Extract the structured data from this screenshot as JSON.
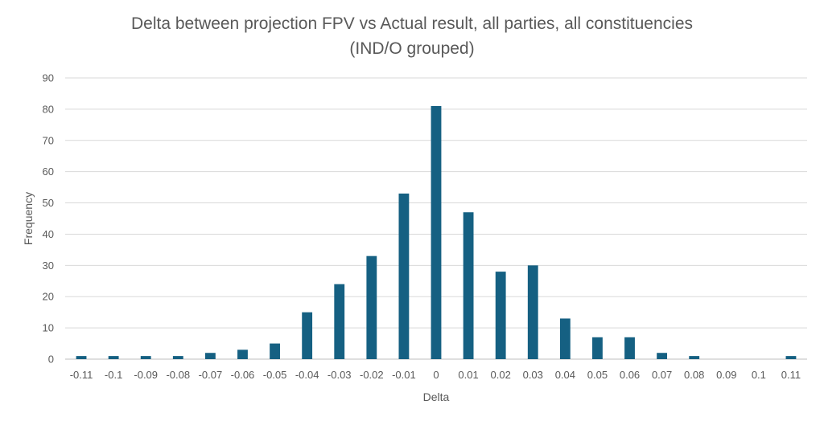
{
  "chart_data": {
    "type": "bar",
    "title_lines": [
      "Delta between projection FPV vs Actual result, all parties, all constituencies",
      "(IND/O grouped)"
    ],
    "xlabel": "Delta",
    "ylabel": "Frequency",
    "categories": [
      "-0.11",
      "-0.1",
      "-0.09",
      "-0.08",
      "-0.07",
      "-0.06",
      "-0.05",
      "-0.04",
      "-0.03",
      "-0.02",
      "-0.01",
      "0",
      "0.01",
      "0.02",
      "0.03",
      "0.04",
      "0.05",
      "0.06",
      "0.07",
      "0.08",
      "0.09",
      "0.1",
      "0.11"
    ],
    "values": [
      1,
      1,
      1,
      1,
      2,
      3,
      5,
      15,
      24,
      33,
      53,
      81,
      47,
      28,
      30,
      13,
      7,
      7,
      2,
      1,
      0,
      0,
      1
    ],
    "ylim": [
      0,
      90
    ],
    "yticks": [
      0,
      10,
      20,
      30,
      40,
      50,
      60,
      70,
      80,
      90
    ],
    "grid": true,
    "legend": "none",
    "bar_color": "#156082"
  }
}
